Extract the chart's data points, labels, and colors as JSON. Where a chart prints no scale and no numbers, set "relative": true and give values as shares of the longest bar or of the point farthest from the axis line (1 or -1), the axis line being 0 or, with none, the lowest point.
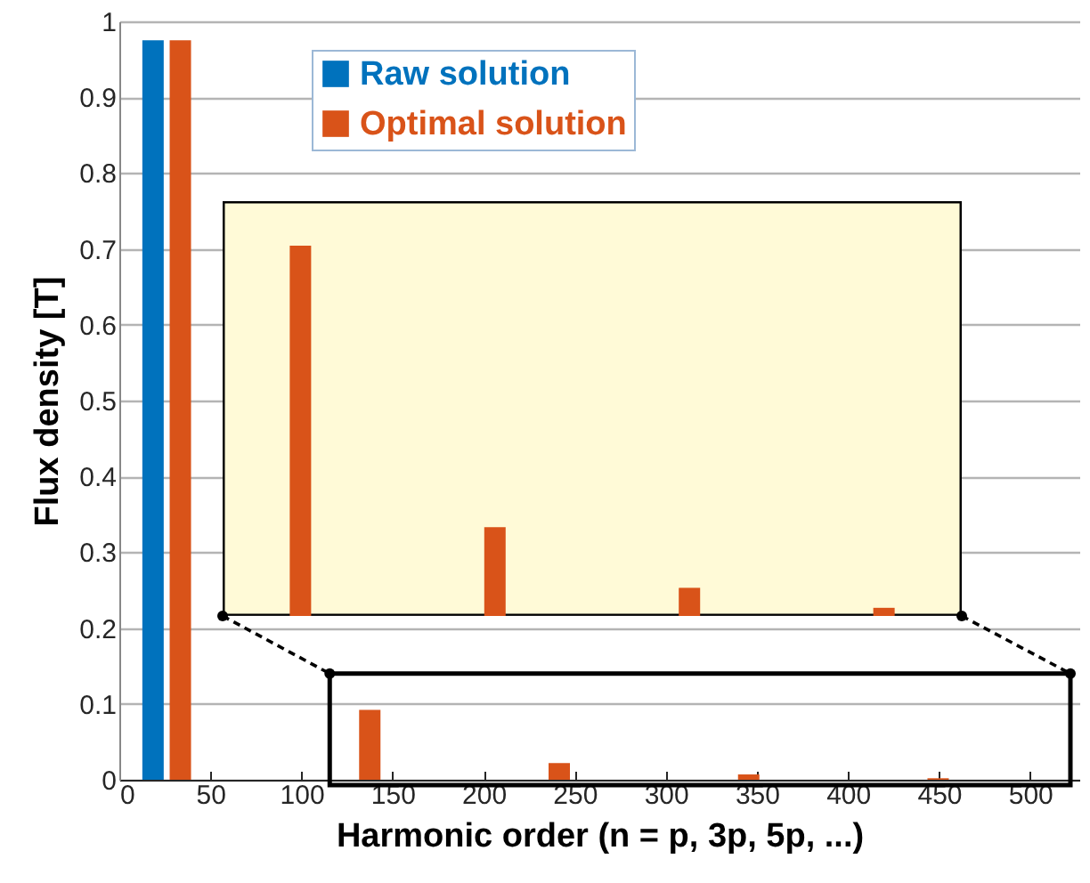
{
  "chart_data": [
    {
      "type": "bar",
      "xlabel": "Harmonic order (n = p, 3p, 5p, ...)",
      "ylabel": "Flux density [T]",
      "xlim": [
        0,
        527
      ],
      "ylim": [
        0,
        1
      ],
      "xticks": [
        0,
        50,
        100,
        150,
        200,
        250,
        300,
        350,
        400,
        450,
        500
      ],
      "yticks": [
        0,
        0.1,
        0.2,
        0.3,
        0.4,
        0.5,
        0.6,
        0.7,
        0.8,
        0.9,
        1
      ],
      "grid": "y",
      "legend": "top",
      "series": [
        {
          "name": "Raw solution",
          "color": "#0072bd",
          "x": [
            18.5
          ],
          "values": [
            0.975
          ]
        },
        {
          "name": "Optimal solution",
          "color": "#d95319",
          "x": [
            33.5,
            137.5,
            241.5,
            345.5,
            449.5
          ],
          "values": [
            0.975,
            0.092,
            0.022,
            0.007,
            0.002
          ]
        }
      ]
    },
    {
      "type": "bar",
      "relative": true,
      "categories": [
        null,
        null,
        null,
        null
      ],
      "series": [
        {
          "color": "#d95319",
          "values": [
            1,
            0.24,
            0.076,
            0.022
          ]
        }
      ]
    }
  ]
}
